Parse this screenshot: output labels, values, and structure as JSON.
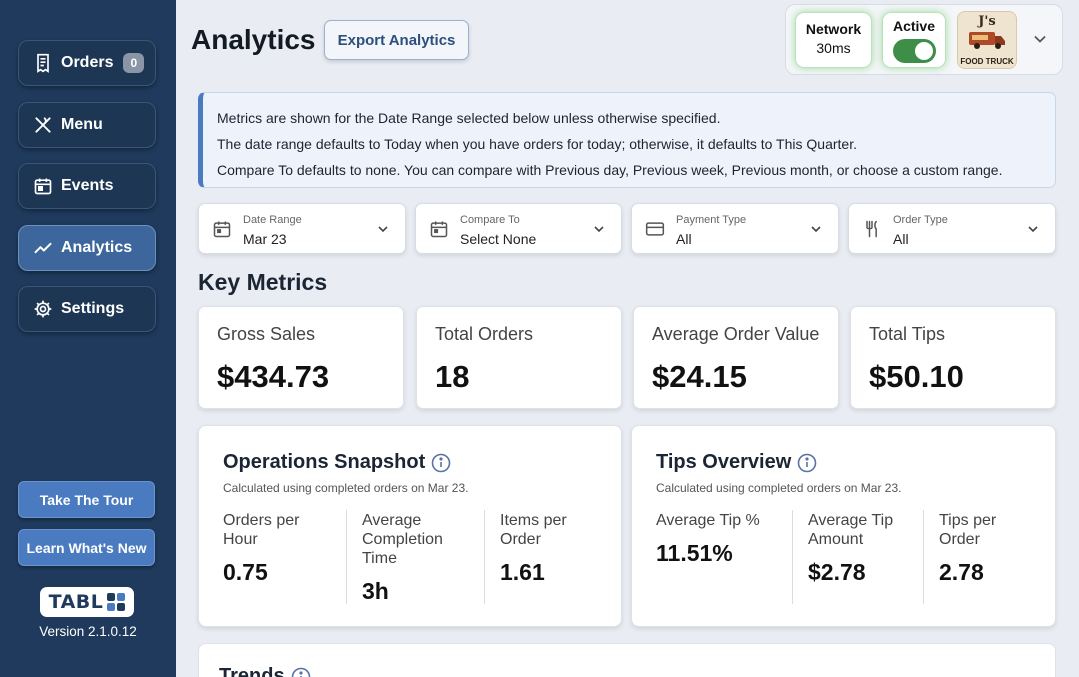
{
  "sidebar": {
    "nav": [
      {
        "label": "Orders",
        "icon": "receipt-icon",
        "badge": "0"
      },
      {
        "label": "Menu",
        "icon": "utensils-icon"
      },
      {
        "label": "Events",
        "icon": "calendar-icon"
      },
      {
        "label": "Analytics",
        "icon": "trend-icon",
        "active": true
      },
      {
        "label": "Settings",
        "icon": "gear-icon"
      }
    ],
    "tour_label": "Take The Tour",
    "whats_new_label": "Learn What's New",
    "logo_text": "TABL",
    "version": "Version 2.1.0.12"
  },
  "header": {
    "title": "Analytics",
    "export_label": "Export Analytics",
    "network_label": "Network",
    "network_value": "30ms",
    "active_label": "Active",
    "active_on": true,
    "brand_line1": "J's",
    "brand_line2": "FOOD TRUCK"
  },
  "info": {
    "lines": [
      "Metrics are shown for the Date Range selected below unless otherwise specified.",
      "The date range defaults to Today when you have orders for today; otherwise, it defaults to This Quarter.",
      "Compare To defaults to none. You can compare with Previous day, Previous week, Previous month, or choose a custom range."
    ]
  },
  "filters": [
    {
      "label": "Date Range",
      "value": "Mar 23",
      "icon": "calendar-icon"
    },
    {
      "label": "Compare To",
      "value": "Select None",
      "icon": "calendar-icon"
    },
    {
      "label": "Payment Type",
      "value": "All",
      "icon": "card-icon"
    },
    {
      "label": "Order Type",
      "value": "All",
      "icon": "utensils-icon"
    }
  ],
  "key_metrics": {
    "title": "Key Metrics",
    "cards": [
      {
        "label": "Gross Sales",
        "value": "$434.73"
      },
      {
        "label": "Total Orders",
        "value": "18"
      },
      {
        "label": "Average Order Value",
        "value": "$24.15"
      },
      {
        "label": "Total Tips",
        "value": "$50.10"
      }
    ]
  },
  "operations": {
    "title": "Operations Snapshot",
    "subtitle": "Calculated using completed orders on Mar 23.",
    "stats": [
      {
        "label_lines": [
          "Orders per",
          "Hour"
        ],
        "value": "0.75"
      },
      {
        "label_lines": [
          "Average",
          "Completion",
          "Time"
        ],
        "value": "3h"
      },
      {
        "label_lines": [
          "Items per",
          "Order"
        ],
        "value": "1.61"
      }
    ]
  },
  "tips": {
    "title": "Tips Overview",
    "subtitle": "Calculated using completed orders on Mar 23.",
    "stats": [
      {
        "label_lines": [
          "Average Tip %"
        ],
        "value": "11.51%"
      },
      {
        "label_lines": [
          "Average Tip",
          "Amount"
        ],
        "value": "$2.78"
      },
      {
        "label_lines": [
          "Tips per",
          "Order"
        ],
        "value": "2.78"
      }
    ]
  },
  "trends": {
    "title": "Trends"
  },
  "colors": {
    "sidebar": "#1f3a5c",
    "accent": "#4a7ac0",
    "active_green": "#3e8e48"
  }
}
